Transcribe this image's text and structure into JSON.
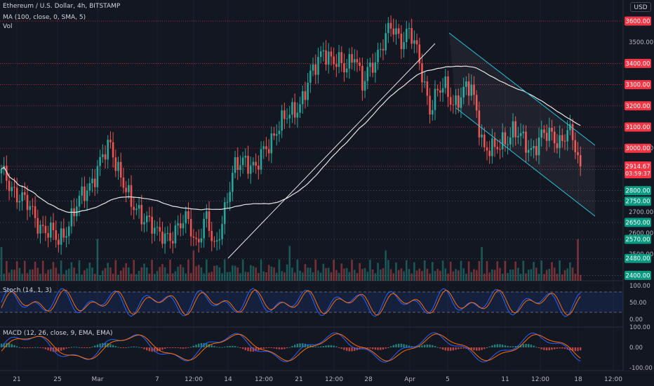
{
  "header": {
    "symbol_line": "Ethereum / U.S. Dollar, 4h, BITSTAMP",
    "ma_line": "MA (100, close, 0, SMA, 5)",
    "vol_label": "Vol",
    "currency_button": "USD"
  },
  "colors": {
    "background": "#131722",
    "bull": "#26a69a",
    "bear": "#ef5350",
    "ma": "#e6e6e6",
    "trendline": "#e6e6e6",
    "channel": "#26c6da",
    "level_line": "#f23645",
    "support_tag": "#089981",
    "resistance_tag": "#f23645",
    "price_tag": "#f23645",
    "stoch_k": "#2962ff",
    "stoch_d": "#ff6d00",
    "macd_line": "#2962ff",
    "signal_line": "#ff6d00"
  },
  "chart_data": {
    "type": "candlestick",
    "price_axis": {
      "ticks": [
        "3500.00",
        "3000.00",
        "2700.00",
        "2600.00",
        "2500.00"
      ],
      "range": [
        2400,
        3660
      ]
    },
    "resistance_levels": [
      "3600.00",
      "3400.00",
      "3300.00",
      "3200.00",
      "3100.00",
      "3000.00"
    ],
    "support_levels": [
      "2900.00",
      "2800.00",
      "2750.00",
      "2650.00",
      "2570.00",
      "2480.00",
      "2400.00"
    ],
    "last_price": {
      "value": "2914.67",
      "countdown": "03:59:37"
    },
    "x_axis_labels": [
      "21",
      "25",
      "Mar",
      "7",
      "12:00",
      "14",
      "12:00",
      "21",
      "12:00",
      "28",
      "Apr",
      "5",
      "11",
      "12:00",
      "18",
      "12:00"
    ],
    "price_path": [
      [
        0,
        2880
      ],
      [
        8,
        2760
      ],
      [
        15,
        2640
      ],
      [
        22,
        2560
      ],
      [
        28,
        2700
      ],
      [
        33,
        2810
      ],
      [
        38,
        2930
      ],
      [
        42,
        3010
      ],
      [
        46,
        2880
      ],
      [
        50,
        2720
      ],
      [
        56,
        2680
      ],
      [
        60,
        2580
      ],
      [
        66,
        2600
      ],
      [
        72,
        2660
      ],
      [
        75,
        2560
      ],
      [
        79,
        2660
      ],
      [
        82,
        2520
      ],
      [
        86,
        2720
      ],
      [
        90,
        2900
      ],
      [
        94,
        2960
      ],
      [
        98,
        2900
      ],
      [
        102,
        3000
      ],
      [
        106,
        3100
      ],
      [
        111,
        3150
      ],
      [
        115,
        3220
      ],
      [
        118,
        3300
      ],
      [
        121,
        3380
      ],
      [
        124,
        3480
      ],
      [
        128,
        3400
      ],
      [
        132,
        3380
      ],
      [
        136,
        3460
      ],
      [
        139,
        3280
      ],
      [
        142,
        3380
      ],
      [
        146,
        3480
      ],
      [
        150,
        3560
      ],
      [
        154,
        3520
      ],
      [
        157,
        3560
      ],
      [
        160,
        3440
      ],
      [
        163,
        3300
      ],
      [
        165,
        3200
      ],
      [
        168,
        3260
      ],
      [
        171,
        3280
      ],
      [
        174,
        3220
      ],
      [
        178,
        3260
      ],
      [
        181,
        3280
      ],
      [
        183,
        3180
      ],
      [
        186,
        3000
      ],
      [
        190,
        2980
      ],
      [
        193,
        3040
      ],
      [
        197,
        3080
      ],
      [
        200,
        3040
      ],
      [
        204,
        3000
      ],
      [
        208,
        3050
      ],
      [
        212,
        3060
      ],
      [
        216,
        3040
      ],
      [
        218,
        3080
      ],
      [
        221,
        3000
      ],
      [
        223,
        2914.67
      ]
    ],
    "indicators": {
      "ma": {
        "name": "MA (100, close, 0, SMA, 5)",
        "type": "SMA",
        "length": 100
      },
      "stoch": {
        "label": "Stoch (14, 1, 3)",
        "axis_ticks": [
          "100.00",
          "50.00",
          "0.00"
        ],
        "bands": [
          80,
          20
        ]
      },
      "macd": {
        "label": "MACD (12, 26, close, 9, EMA, EMA)",
        "axis_ticks": [
          "100.00",
          "0.00",
          "-100.00"
        ]
      }
    }
  }
}
